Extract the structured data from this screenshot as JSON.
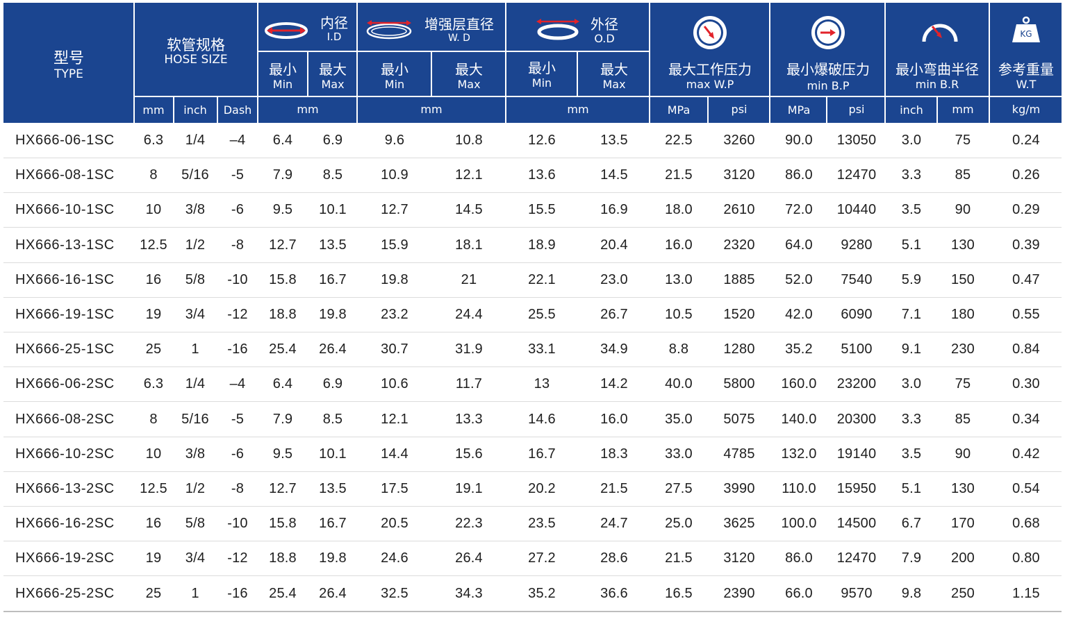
{
  "colors": {
    "header_bg": "#1b4590",
    "divider": "#ffffff",
    "accent_red": "#e2232a",
    "text": "#1e1e1e"
  },
  "header": {
    "type": {
      "cn": "型号",
      "en": "TYPE"
    },
    "hose": {
      "cn": "软管规格",
      "en": "HOSE SIZE",
      "units": [
        "mm",
        "inch",
        "Dash"
      ]
    },
    "id": {
      "cn": "内径",
      "en": "I.D",
      "icon": "inner-diameter-icon",
      "min_cn": "最小",
      "min_en": "Min",
      "max_cn": "最大",
      "max_en": "Max",
      "unit": "mm"
    },
    "wd": {
      "cn": "增强层直径",
      "en": "W. D",
      "icon": "reinforcement-diameter-icon",
      "min_cn": "最小",
      "min_en": "Min",
      "max_cn": "最大",
      "max_en": "Max",
      "unit": "mm"
    },
    "od": {
      "cn": "外径",
      "en": "O.D",
      "icon": "outer-diameter-icon",
      "min_cn": "最小",
      "min_en": "Min",
      "max_cn": "最大",
      "max_en": "Max",
      "unit": "mm"
    },
    "wp": {
      "cn": "最大工作压力",
      "en": "max W.P",
      "icon": "gauge-icon",
      "units": [
        "MPa",
        "psi"
      ]
    },
    "bp": {
      "cn": "最小爆破压力",
      "en": "min B.P",
      "icon": "gauge-burst-icon",
      "units": [
        "MPa",
        "psi"
      ]
    },
    "br": {
      "cn": "最小弯曲半径",
      "en": "min B.R",
      "icon": "bend-radius-icon",
      "units": [
        "inch",
        "mm"
      ]
    },
    "wt": {
      "cn": "参考重量",
      "en": "W.T",
      "icon": "weight-kg-icon",
      "icon_text": "KG",
      "unit": "kg/m"
    }
  },
  "rows": [
    [
      "HX666-06-1SC",
      "6.3",
      "1/4",
      "–4",
      "6.4",
      "6.9",
      "9.6",
      "10.8",
      "12.6",
      "13.5",
      "22.5",
      "3260",
      "90.0",
      "13050",
      "3.0",
      "75",
      "0.24"
    ],
    [
      "HX666-08-1SC",
      "8",
      "5/16",
      "-5",
      "7.9",
      "8.5",
      "10.9",
      "12.1",
      "13.6",
      "14.5",
      "21.5",
      "3120",
      "86.0",
      "12470",
      "3.3",
      "85",
      "0.26"
    ],
    [
      "HX666-10-1SC",
      "10",
      "3/8",
      "-6",
      "9.5",
      "10.1",
      "12.7",
      "14.5",
      "15.5",
      "16.9",
      "18.0",
      "2610",
      "72.0",
      "10440",
      "3.5",
      "90",
      "0.29"
    ],
    [
      "HX666-13-1SC",
      "12.5",
      "1/2",
      "-8",
      "12.7",
      "13.5",
      "15.9",
      "18.1",
      "18.9",
      "20.4",
      "16.0",
      "2320",
      "64.0",
      "9280",
      "5.1",
      "130",
      "0.39"
    ],
    [
      "HX666-16-1SC",
      "16",
      "5/8",
      "-10",
      "15.8",
      "16.7",
      "19.8",
      "21",
      "22.1",
      "23.0",
      "13.0",
      "1885",
      "52.0",
      "7540",
      "5.9",
      "150",
      "0.47"
    ],
    [
      "HX666-19-1SC",
      "19",
      "3/4",
      "-12",
      "18.8",
      "19.8",
      "23.2",
      "24.4",
      "25.5",
      "26.7",
      "10.5",
      "1520",
      "42.0",
      "6090",
      "7.1",
      "180",
      "0.55"
    ],
    [
      "HX666-25-1SC",
      "25",
      "1",
      "-16",
      "25.4",
      "26.4",
      "30.7",
      "31.9",
      "33.1",
      "34.9",
      "8.8",
      "1280",
      "35.2",
      "5100",
      "9.1",
      "230",
      "0.84"
    ],
    [
      "HX666-06-2SC",
      "6.3",
      "1/4",
      "–4",
      "6.4",
      "6.9",
      "10.6",
      "11.7",
      "13",
      "14.2",
      "40.0",
      "5800",
      "160.0",
      "23200",
      "3.0",
      "75",
      "0.30"
    ],
    [
      "HX666-08-2SC",
      "8",
      "5/16",
      "-5",
      "7.9",
      "8.5",
      "12.1",
      "13.3",
      "14.6",
      "16.0",
      "35.0",
      "5075",
      "140.0",
      "20300",
      "3.3",
      "85",
      "0.34"
    ],
    [
      "HX666-10-2SC",
      "10",
      "3/8",
      "-6",
      "9.5",
      "10.1",
      "14.4",
      "15.6",
      "16.7",
      "18.3",
      "33.0",
      "4785",
      "132.0",
      "19140",
      "3.5",
      "90",
      "0.42"
    ],
    [
      "HX666-13-2SC",
      "12.5",
      "1/2",
      "-8",
      "12.7",
      "13.5",
      "17.5",
      "19.1",
      "20.2",
      "21.5",
      "27.5",
      "3990",
      "110.0",
      "15950",
      "5.1",
      "130",
      "0.54"
    ],
    [
      "HX666-16-2SC",
      "16",
      "5/8",
      "-10",
      "15.8",
      "16.7",
      "20.5",
      "22.3",
      "23.5",
      "24.7",
      "25.0",
      "3625",
      "100.0",
      "14500",
      "6.7",
      "170",
      "0.68"
    ],
    [
      "HX666-19-2SC",
      "19",
      "3/4",
      "-12",
      "18.8",
      "19.8",
      "24.6",
      "26.4",
      "27.2",
      "28.6",
      "21.5",
      "3120",
      "86.0",
      "12470",
      "7.9",
      "200",
      "0.80"
    ],
    [
      "HX666-25-2SC",
      "25",
      "1",
      "-16",
      "25.4",
      "26.4",
      "32.5",
      "34.3",
      "35.2",
      "36.6",
      "16.5",
      "2390",
      "66.0",
      "9570",
      "9.8",
      "250",
      "1.15"
    ]
  ]
}
